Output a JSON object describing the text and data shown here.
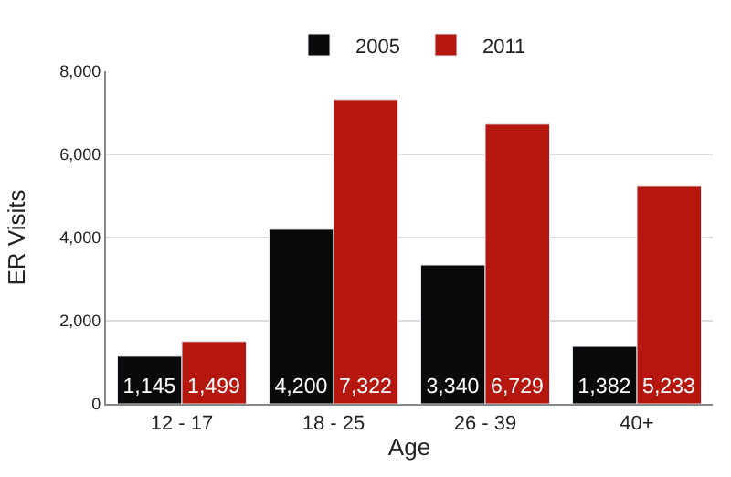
{
  "chart_data": {
    "type": "bar",
    "xlabel": "Age",
    "ylabel": "ER Visits",
    "categories": [
      "12 - 17",
      "18 - 25",
      "26 - 39",
      "40+"
    ],
    "series": [
      {
        "name": "2005",
        "color": "#0a0a0a",
        "values": [
          1145,
          4200,
          3340,
          1382
        ],
        "value_labels": [
          "1,145",
          "4,200",
          "3,340",
          "1,382"
        ]
      },
      {
        "name": "2011",
        "color": "#b5170e",
        "values": [
          1499,
          7322,
          6729,
          5233
        ],
        "value_labels": [
          "1,499",
          "7,322",
          "6,729",
          "5,233"
        ]
      }
    ],
    "ylim": [
      0,
      8000
    ],
    "yticks": [
      {
        "value": 0,
        "label": "0"
      },
      {
        "value": 2000,
        "label": "2,000"
      },
      {
        "value": 4000,
        "label": "4,000"
      },
      {
        "value": 6000,
        "label": "6,000"
      },
      {
        "value": 8000,
        "label": "8,000"
      }
    ],
    "grid": "y",
    "legend": "top"
  }
}
